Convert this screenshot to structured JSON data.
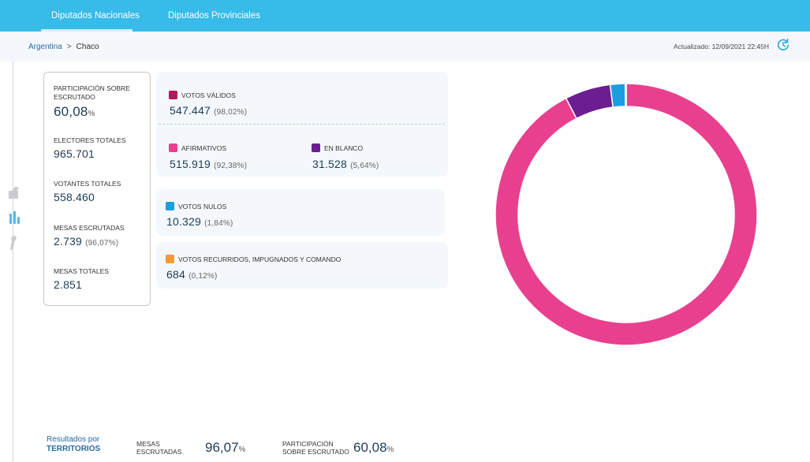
{
  "nav": {
    "tabs": [
      {
        "label": "Diputados Nacionales"
      },
      {
        "label": "Diputados Provinciales"
      }
    ]
  },
  "breadcrumb": {
    "root": "Argentina",
    "separator": ">",
    "current": "Chaco"
  },
  "updated": "Actualizado: 12/09/2021 22:45H",
  "summary": {
    "participacion": {
      "label": "PARTICIPACIÓN SOBRE ESCRUTADO",
      "value": "60,08",
      "unit": "%"
    },
    "electores": {
      "label": "ELECTORES TOTALES",
      "value": "965.701"
    },
    "votantes": {
      "label": "VOTANTES TOTALES",
      "value": "558.460"
    },
    "mesas_escrutadas": {
      "label": "MESAS ESCRUTADAS",
      "value": "2.739",
      "pct": "(96,07%)"
    },
    "mesas_totales": {
      "label": "MESAS TOTALES",
      "value": "2.851"
    }
  },
  "results": {
    "validos": {
      "label": "VOTOS VÁLIDOS",
      "value": "547.447",
      "pct": "(98,02%)",
      "color": "#b5185a"
    },
    "afirmativos": {
      "label": "AFIRMATIVOS",
      "value": "515.919",
      "pct": "(92,38%)",
      "color": "#e8408e"
    },
    "blanco": {
      "label": "EN BLANCO",
      "value": "31.528",
      "pct": "(5,64%)",
      "color": "#6c1d92"
    },
    "nulos": {
      "label": "VOTOS NULOS",
      "value": "10.329",
      "pct": "(1,84%)",
      "color": "#1b9ee0"
    },
    "recurridos": {
      "label": "VOTOS RECURRIDOS, IMPUGNADOS Y COMANDO",
      "value": "684",
      "pct": "(0,12%)",
      "color": "#f29a35"
    }
  },
  "chart_data": {
    "type": "pie",
    "title": "",
    "categories": [
      "AFIRMATIVOS",
      "EN BLANCO",
      "VOTOS NULOS",
      "VOTOS RECURRIDOS, IMPUGNADOS Y COMANDO"
    ],
    "values": [
      92.38,
      5.64,
      1.84,
      0.12
    ],
    "colors": [
      "#e8408e",
      "#6c1d92",
      "#1b9ee0",
      "#f29a35"
    ]
  },
  "footer": {
    "link_line1": "Resultados por",
    "link_line2": "TERRITORIOS",
    "mesas_label1": "MESAS",
    "mesas_label2": "ESCRUTADAS",
    "mesas_value": "96,07",
    "part_label1": "PARTICIPACIÓN",
    "part_label2": "SOBRE ESCRUTADO",
    "part_value": "60,08",
    "unit": "%"
  },
  "icons": {
    "rail": [
      "ballot-box-icon",
      "bar-chart-icon",
      "map-icon"
    ],
    "refresh": "refresh-icon"
  }
}
